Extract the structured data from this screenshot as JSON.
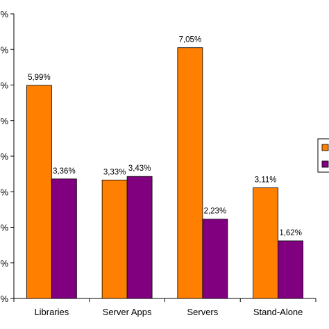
{
  "chart_data": {
    "type": "bar",
    "title": "",
    "xlabel": "",
    "ylabel": "",
    "categories": [
      "Libraries",
      "Server Apps",
      "Servers",
      "Stand-Alone"
    ],
    "series": [
      {
        "color": "#ff7f00",
        "values": [
          5.99,
          3.33,
          7.05,
          3.11
        ],
        "labels": [
          "5,99%",
          "3,33%",
          "7,05%",
          "3,11%"
        ]
      },
      {
        "color": "#800080",
        "values": [
          3.36,
          3.43,
          2.23,
          1.62
        ],
        "labels": [
          "3,36%",
          "3,43%",
          "2,23%",
          "1,62%"
        ]
      }
    ],
    "ylim": [
      0,
      8
    ],
    "yticks": [
      0,
      1,
      2,
      3,
      4,
      5,
      6,
      7,
      8
    ],
    "ytick_labels": [
      "%",
      "%",
      "%",
      "%",
      "%",
      "%",
      "%",
      "%",
      "%"
    ],
    "grid": false,
    "legend_position": "right"
  }
}
